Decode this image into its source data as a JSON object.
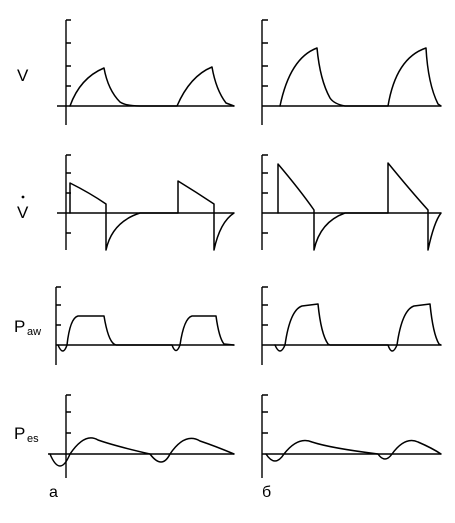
{
  "figure": {
    "rows": [
      {
        "id": "v",
        "label": "V",
        "subscript": "",
        "dot": false
      },
      {
        "id": "vdot",
        "label": "V",
        "subscript": "",
        "dot": true
      },
      {
        "id": "paw",
        "label": "P",
        "subscript": "aw",
        "dot": false
      },
      {
        "id": "pes",
        "label": "P",
        "subscript": "es",
        "dot": false
      }
    ],
    "panels": [
      {
        "id": "a",
        "label": "а"
      },
      {
        "id": "b",
        "label": "б"
      }
    ]
  }
}
